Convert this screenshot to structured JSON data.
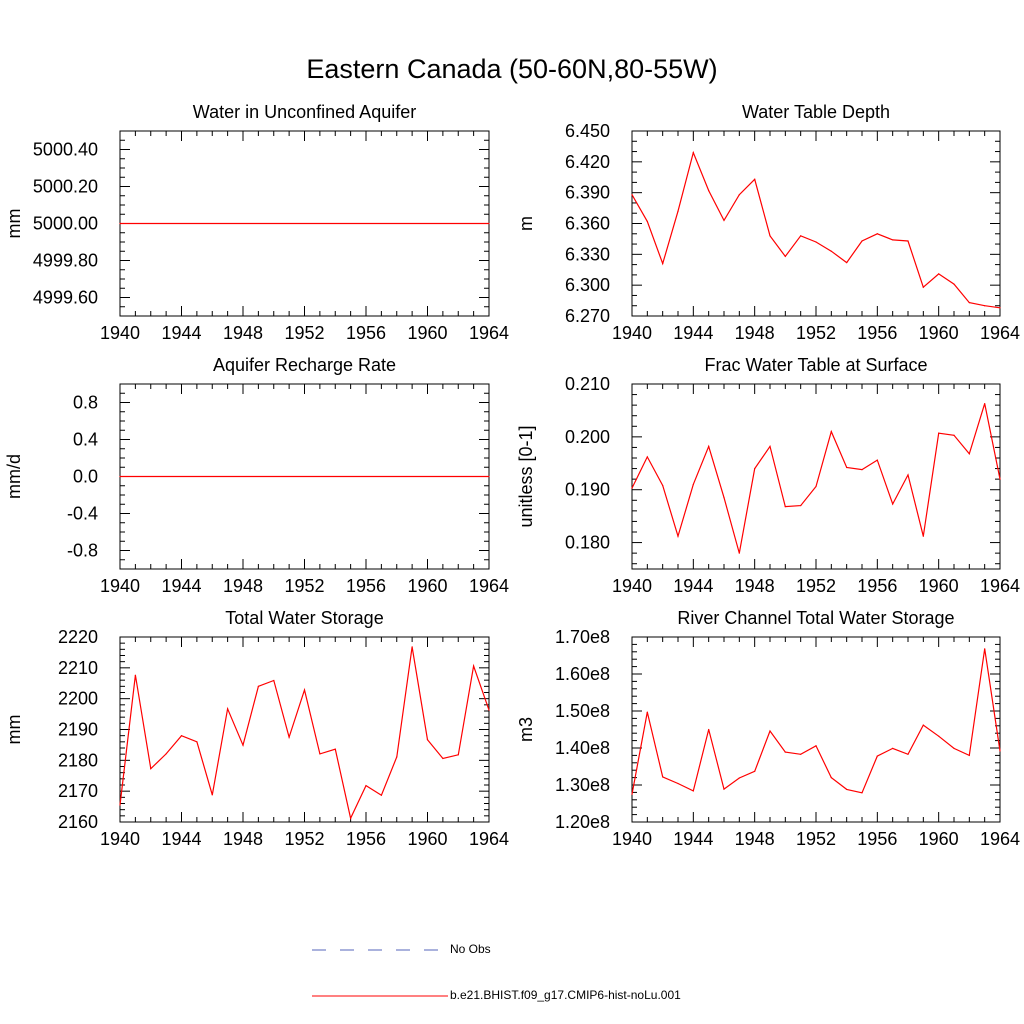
{
  "figure": {
    "title": "Eastern Canada (50-60N,80-55W)",
    "line_color": "#ff0000",
    "obs_color": "#5566bb"
  },
  "legend": {
    "obs_label": "No Obs",
    "model_label": "b.e21.BHIST.f09_g17.CMIP6-hist-noLu.001"
  },
  "chart_data": [
    {
      "type": "line",
      "title": "Water in Unconfined Aquifer",
      "ylabel": "mm",
      "xlim": [
        1940,
        1964
      ],
      "ylim": [
        4999.5,
        5000.5
      ],
      "xticks": [
        1940,
        1944,
        1948,
        1952,
        1956,
        1960,
        1964
      ],
      "xtick_labels": [
        "1940",
        "1944",
        "1948",
        "1952",
        "1956",
        "1960",
        "1964"
      ],
      "yticks": [
        4999.6,
        4999.8,
        5000.0,
        5000.2,
        5000.4
      ],
      "ytick_labels": [
        "4999.60",
        "4999.80",
        "5000.00",
        "5000.20",
        "5000.40"
      ],
      "yminor": [
        4999.5,
        4999.55,
        4999.65,
        4999.7,
        4999.75,
        4999.85,
        4999.9,
        4999.95,
        5000.05,
        5000.1,
        5000.15,
        5000.25,
        5000.3,
        5000.35,
        5000.45,
        5000.5
      ],
      "x": [
        1940,
        1964
      ],
      "y": [
        5000.0,
        5000.0
      ]
    },
    {
      "type": "line",
      "title": "Water Table Depth",
      "ylabel": "m",
      "xlim": [
        1940,
        1964
      ],
      "ylim": [
        6.27,
        6.45
      ],
      "xticks": [
        1940,
        1944,
        1948,
        1952,
        1956,
        1960,
        1964
      ],
      "xtick_labels": [
        "1940",
        "1944",
        "1948",
        "1952",
        "1956",
        "1960",
        "1964"
      ],
      "yticks": [
        6.27,
        6.3,
        6.33,
        6.36,
        6.39,
        6.42,
        6.45
      ],
      "ytick_labels": [
        "6.270",
        "6.300",
        "6.330",
        "6.360",
        "6.390",
        "6.420",
        "6.450"
      ],
      "yminor": [
        6.28,
        6.29,
        6.31,
        6.32,
        6.34,
        6.35,
        6.37,
        6.38,
        6.4,
        6.41,
        6.43,
        6.44
      ],
      "x": [
        1940,
        1941,
        1942,
        1943,
        1944,
        1945,
        1946,
        1947,
        1948,
        1949,
        1950,
        1951,
        1952,
        1953,
        1954,
        1955,
        1956,
        1957,
        1958,
        1959,
        1960,
        1961,
        1962,
        1963,
        1964
      ],
      "y": [
        6.388,
        6.362,
        6.321,
        6.372,
        6.429,
        6.392,
        6.363,
        6.388,
        6.403,
        6.348,
        6.328,
        6.348,
        6.342,
        6.333,
        6.322,
        6.343,
        6.35,
        6.344,
        6.343,
        6.298,
        6.311,
        6.301,
        6.283,
        6.28,
        6.278
      ]
    },
    {
      "type": "line",
      "title": "Aquifer Recharge Rate",
      "ylabel": "mm/d",
      "xlim": [
        1940,
        1964
      ],
      "ylim": [
        -1.0,
        1.0
      ],
      "xticks": [
        1940,
        1944,
        1948,
        1952,
        1956,
        1960,
        1964
      ],
      "xtick_labels": [
        "1940",
        "1944",
        "1948",
        "1952",
        "1956",
        "1960",
        "1964"
      ],
      "yticks": [
        -0.8,
        -0.4,
        0.0,
        0.4,
        0.8
      ],
      "ytick_labels": [
        "-0.8",
        "-0.4",
        "0.0",
        "0.4",
        "0.8"
      ],
      "yminor": [
        -1.0,
        -0.9,
        -0.7,
        -0.6,
        -0.5,
        -0.3,
        -0.2,
        -0.1,
        0.1,
        0.2,
        0.3,
        0.5,
        0.6,
        0.7,
        0.9,
        1.0
      ],
      "x": [
        1940,
        1964
      ],
      "y": [
        0.0,
        0.0
      ]
    },
    {
      "type": "line",
      "title": "Frac Water Table at Surface",
      "ylabel": "unitless [0-1]",
      "xlim": [
        1940,
        1964
      ],
      "ylim": [
        0.175,
        0.21
      ],
      "xticks": [
        1940,
        1944,
        1948,
        1952,
        1956,
        1960,
        1964
      ],
      "xtick_labels": [
        "1940",
        "1944",
        "1948",
        "1952",
        "1956",
        "1960",
        "1964"
      ],
      "yticks": [
        0.18,
        0.19,
        0.2,
        0.21
      ],
      "ytick_labels": [
        "0.180",
        "0.190",
        "0.200",
        "0.210"
      ],
      "yminor": [
        0.176,
        0.178,
        0.182,
        0.184,
        0.186,
        0.188,
        0.192,
        0.194,
        0.196,
        0.198,
        0.202,
        0.204,
        0.206,
        0.208
      ],
      "x": [
        1940,
        1941,
        1942,
        1943,
        1944,
        1945,
        1946,
        1947,
        1948,
        1949,
        1950,
        1951,
        1952,
        1953,
        1954,
        1955,
        1956,
        1957,
        1958,
        1959,
        1960,
        1961,
        1962,
        1963,
        1964
      ],
      "y": [
        0.1903,
        0.1962,
        0.1908,
        0.1812,
        0.191,
        0.1982,
        0.1885,
        0.178,
        0.194,
        0.1982,
        0.1868,
        0.187,
        0.1906,
        0.201,
        0.1942,
        0.1938,
        0.1956,
        0.1873,
        0.1928,
        0.1812,
        0.2007,
        0.2003,
        0.1968,
        0.2063,
        0.192
      ]
    },
    {
      "type": "line",
      "title": "Total Water Storage",
      "ylabel": "mm",
      "xlim": [
        1940,
        1964
      ],
      "ylim": [
        2160,
        2220
      ],
      "xticks": [
        1940,
        1944,
        1948,
        1952,
        1956,
        1960,
        1964
      ],
      "xtick_labels": [
        "1940",
        "1944",
        "1948",
        "1952",
        "1956",
        "1960",
        "1964"
      ],
      "yticks": [
        2160,
        2170,
        2180,
        2190,
        2200,
        2210,
        2220
      ],
      "ytick_labels": [
        "2160",
        "2170",
        "2180",
        "2190",
        "2200",
        "2210",
        "2220"
      ],
      "yminor": [
        2162,
        2164,
        2166,
        2168,
        2172,
        2174,
        2176,
        2178,
        2182,
        2184,
        2186,
        2188,
        2192,
        2194,
        2196,
        2198,
        2202,
        2204,
        2206,
        2208,
        2212,
        2214,
        2216,
        2218
      ],
      "x": [
        1940,
        1941,
        1942,
        1943,
        1944,
        1945,
        1946,
        1947,
        1948,
        1949,
        1950,
        1951,
        1952,
        1953,
        1954,
        1955,
        1956,
        1957,
        1958,
        1959,
        1960,
        1961,
        1962,
        1963,
        1964
      ],
      "y": [
        2165.5,
        2207.6,
        2177.3,
        2182.1,
        2188.0,
        2186.0,
        2168.8,
        2196.7,
        2184.9,
        2204.0,
        2205.9,
        2187.5,
        2202.8,
        2182.1,
        2183.6,
        2161.2,
        2171.8,
        2168.7,
        2181.1,
        2216.8,
        2186.7,
        2180.6,
        2181.8,
        2210.6,
        2196.3
      ]
    },
    {
      "type": "line",
      "title": "River Channel Total Water Storage",
      "ylabel": "m3",
      "xlim": [
        1940,
        1964
      ],
      "ylim": [
        120000000.0,
        170000000.0
      ],
      "xticks": [
        1940,
        1944,
        1948,
        1952,
        1956,
        1960,
        1964
      ],
      "xtick_labels": [
        "1940",
        "1944",
        "1948",
        "1952",
        "1956",
        "1960",
        "1964"
      ],
      "yticks": [
        120000000.0,
        130000000.0,
        140000000.0,
        150000000.0,
        160000000.0,
        170000000.0
      ],
      "ytick_labels": [
        "1.20e8",
        "1.30e8",
        "1.40e8",
        "1.50e8",
        "1.60e8",
        "1.70e8"
      ],
      "yminor": [
        122000000.0,
        124000000.0,
        126000000.0,
        128000000.0,
        132000000.0,
        134000000.0,
        136000000.0,
        138000000.0,
        142000000.0,
        144000000.0,
        146000000.0,
        148000000.0,
        152000000.0,
        154000000.0,
        156000000.0,
        158000000.0,
        162000000.0,
        164000000.0,
        166000000.0,
        168000000.0
      ],
      "x": [
        1940,
        1941,
        1942,
        1943,
        1944,
        1945,
        1946,
        1947,
        1948,
        1949,
        1950,
        1951,
        1952,
        1953,
        1954,
        1955,
        1956,
        1957,
        1958,
        1959,
        1960,
        1961,
        1962,
        1963,
        1964
      ],
      "y": [
        127500000.0,
        149700000.0,
        132200000.0,
        130400000.0,
        128400000.0,
        145000000.0,
        128900000.0,
        131900000.0,
        133700000.0,
        144600000.0,
        138900000.0,
        138300000.0,
        140600000.0,
        132000000.0,
        128800000.0,
        127900000.0,
        137800000.0,
        139900000.0,
        138300000.0,
        146200000.0,
        143200000.0,
        139900000.0,
        138000000.0,
        166800000.0,
        139200000.0
      ]
    }
  ]
}
